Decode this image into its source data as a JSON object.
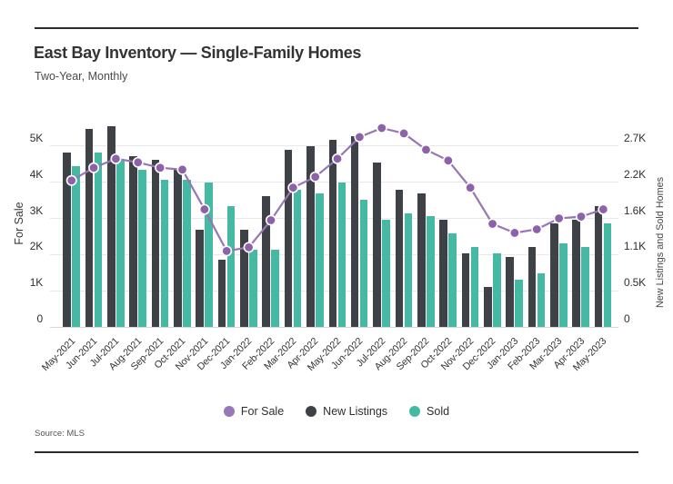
{
  "header": {
    "title": "East Bay Inventory — Single-Family Homes",
    "subtitle": "Two-Year, Monthly"
  },
  "source": "Source: MLS",
  "legend": [
    {
      "label": "For Sale",
      "color": "#9878b8"
    },
    {
      "label": "New Listings",
      "color": "#3e4145"
    },
    {
      "label": "Sold",
      "color": "#45b9a4"
    }
  ],
  "colors": {
    "bar_new_listings": "#3e4145",
    "bar_sold": "#45b9a4",
    "line_for_sale": "#9776b6",
    "marker_for_sale": "#8d62a8",
    "gridline": "#e9e9e9",
    "rule": "#2b2b2b"
  },
  "chart_data": {
    "type": "bar",
    "subtype": "grouped-bars-with-line-overlay",
    "categories": [
      "May-2021",
      "Jun-2021",
      "Jul-2021",
      "Aug-2021",
      "Sep-2021",
      "Oct-2021",
      "Nov-2021",
      "Dec-2021",
      "Jan-2022",
      "Feb-2022",
      "Mar-2022",
      "Apr-2022",
      "May-2022",
      "Jun-2022",
      "Jul-2022",
      "Aug-2022",
      "Sep-2022",
      "Oct-2022",
      "Nov-2022",
      "Dec-2022",
      "Jan-2023",
      "Feb-2023",
      "Mar-2023",
      "Apr-2023",
      "May-2023"
    ],
    "series": [
      {
        "name": "For Sale",
        "type": "line",
        "axis": "left",
        "color": "#9776b6",
        "values": [
          4050,
          4400,
          4650,
          4550,
          4400,
          4350,
          3250,
          2100,
          2200,
          2950,
          3850,
          4150,
          4650,
          5250,
          5500,
          5350,
          4900,
          4600,
          3850,
          2850,
          2600,
          2700,
          3000,
          3050,
          3250
        ]
      },
      {
        "name": "New Listings",
        "type": "bar",
        "axis": "right",
        "color": "#3e4145",
        "values": [
          2600,
          2950,
          3000,
          2550,
          2500,
          2350,
          1450,
          1000,
          1450,
          1950,
          2650,
          2700,
          2800,
          2850,
          2450,
          2050,
          2000,
          1600,
          1100,
          600,
          1050,
          1200,
          1550,
          1600,
          1800
        ]
      },
      {
        "name": "Sold",
        "type": "bar",
        "axis": "right",
        "color": "#45b9a4",
        "values": [
          2400,
          2600,
          2500,
          2350,
          2200,
          2200,
          2150,
          1800,
          1150,
          1150,
          2050,
          2000,
          2150,
          1900,
          1600,
          1700,
          1650,
          1400,
          1200,
          1100,
          700,
          800,
          1250,
          1200,
          1550
        ]
      }
    ],
    "left_axis": {
      "title": "For Sale",
      "ticks": [
        "0",
        "1K",
        "2K",
        "3K",
        "4K",
        "5K"
      ],
      "tick_values": [
        0,
        1000,
        2000,
        3000,
        4000,
        5000
      ],
      "plot_max": 5650
    },
    "right_axis": {
      "title": "New Listings and Sold Homes",
      "ticks": [
        "0",
        "0.5K",
        "1.1K",
        "1.6K",
        "2.2K",
        "2.7K"
      ],
      "tick_values": [
        0,
        500,
        1100,
        1600,
        2200,
        2700
      ],
      "left_to_right_ratio": 0.54
    },
    "grid": true,
    "legend_position": "bottom-center"
  }
}
